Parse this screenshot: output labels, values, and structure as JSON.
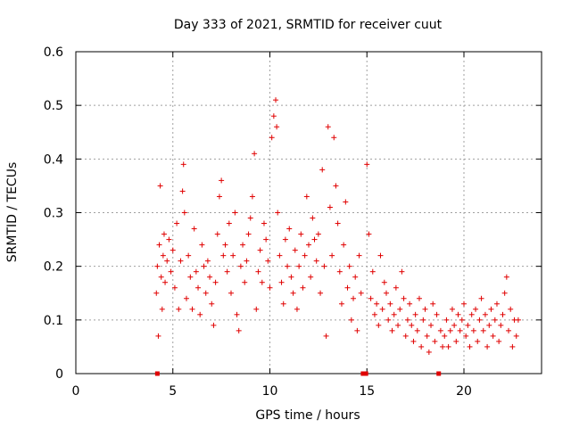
{
  "chart_data": {
    "type": "scatter",
    "title": "Day 333 of 2021, SRMTID for receiver cuut",
    "xlabel": "GPS time / hours",
    "ylabel": "SRMTID / TECUs",
    "xlim": [
      0,
      24
    ],
    "ylim": [
      0,
      0.6
    ],
    "xticks": [
      0,
      5,
      10,
      15,
      20
    ],
    "xtick_labels": [
      "0",
      "5",
      "10",
      "15",
      "20"
    ],
    "yticks": [
      0,
      0.1,
      0.2,
      0.3,
      0.4,
      0.5,
      0.6
    ],
    "ytick_labels": [
      "0",
      "0.1",
      "0.2",
      "0.3",
      "0.4",
      "0.5",
      "0.6"
    ],
    "grid": true,
    "marker": "plus",
    "color": "#e00000",
    "zero_markers_x": [
      4.2,
      14.8,
      14.95,
      18.7
    ],
    "series": [
      {
        "name": "SRMTID",
        "points": [
          [
            4.15,
            0.15
          ],
          [
            4.2,
            0.2
          ],
          [
            4.25,
            0.07
          ],
          [
            4.3,
            0.24
          ],
          [
            4.35,
            0.35
          ],
          [
            4.4,
            0.18
          ],
          [
            4.45,
            0.12
          ],
          [
            4.5,
            0.22
          ],
          [
            4.55,
            0.26
          ],
          [
            4.6,
            0.17
          ],
          [
            4.7,
            0.21
          ],
          [
            4.8,
            0.25
          ],
          [
            4.9,
            0.19
          ],
          [
            5.0,
            0.23
          ],
          [
            5.1,
            0.16
          ],
          [
            5.2,
            0.28
          ],
          [
            5.3,
            0.12
          ],
          [
            5.4,
            0.21
          ],
          [
            5.5,
            0.34
          ],
          [
            5.55,
            0.39
          ],
          [
            5.6,
            0.3
          ],
          [
            5.7,
            0.14
          ],
          [
            5.8,
            0.22
          ],
          [
            5.9,
            0.18
          ],
          [
            6.0,
            0.12
          ],
          [
            6.1,
            0.27
          ],
          [
            6.2,
            0.19
          ],
          [
            6.3,
            0.16
          ],
          [
            6.4,
            0.11
          ],
          [
            6.5,
            0.24
          ],
          [
            6.6,
            0.2
          ],
          [
            6.7,
            0.15
          ],
          [
            6.8,
            0.21
          ],
          [
            6.9,
            0.18
          ],
          [
            7.0,
            0.13
          ],
          [
            7.1,
            0.09
          ],
          [
            7.2,
            0.17
          ],
          [
            7.3,
            0.26
          ],
          [
            7.4,
            0.33
          ],
          [
            7.5,
            0.36
          ],
          [
            7.6,
            0.22
          ],
          [
            7.7,
            0.24
          ],
          [
            7.8,
            0.19
          ],
          [
            7.9,
            0.28
          ],
          [
            8.0,
            0.15
          ],
          [
            8.1,
            0.22
          ],
          [
            8.2,
            0.3
          ],
          [
            8.3,
            0.11
          ],
          [
            8.4,
            0.08
          ],
          [
            8.5,
            0.2
          ],
          [
            8.6,
            0.24
          ],
          [
            8.7,
            0.17
          ],
          [
            8.8,
            0.21
          ],
          [
            8.9,
            0.26
          ],
          [
            9.0,
            0.29
          ],
          [
            9.1,
            0.33
          ],
          [
            9.2,
            0.41
          ],
          [
            9.3,
            0.12
          ],
          [
            9.4,
            0.19
          ],
          [
            9.5,
            0.23
          ],
          [
            9.6,
            0.17
          ],
          [
            9.7,
            0.28
          ],
          [
            9.8,
            0.25
          ],
          [
            9.9,
            0.21
          ],
          [
            10.0,
            0.16
          ],
          [
            10.1,
            0.44
          ],
          [
            10.2,
            0.48
          ],
          [
            10.3,
            0.51
          ],
          [
            10.35,
            0.46
          ],
          [
            10.4,
            0.3
          ],
          [
            10.5,
            0.22
          ],
          [
            10.6,
            0.17
          ],
          [
            10.7,
            0.13
          ],
          [
            10.8,
            0.25
          ],
          [
            10.9,
            0.2
          ],
          [
            11.0,
            0.27
          ],
          [
            11.1,
            0.18
          ],
          [
            11.2,
            0.15
          ],
          [
            11.3,
            0.23
          ],
          [
            11.4,
            0.12
          ],
          [
            11.5,
            0.2
          ],
          [
            11.6,
            0.26
          ],
          [
            11.7,
            0.16
          ],
          [
            11.8,
            0.22
          ],
          [
            11.9,
            0.33
          ],
          [
            12.0,
            0.24
          ],
          [
            12.1,
            0.18
          ],
          [
            12.2,
            0.29
          ],
          [
            12.3,
            0.25
          ],
          [
            12.4,
            0.21
          ],
          [
            12.5,
            0.26
          ],
          [
            12.6,
            0.15
          ],
          [
            12.7,
            0.38
          ],
          [
            12.8,
            0.2
          ],
          [
            12.9,
            0.07
          ],
          [
            13.0,
            0.46
          ],
          [
            13.1,
            0.31
          ],
          [
            13.2,
            0.22
          ],
          [
            13.3,
            0.44
          ],
          [
            13.4,
            0.35
          ],
          [
            13.5,
            0.28
          ],
          [
            13.6,
            0.19
          ],
          [
            13.7,
            0.13
          ],
          [
            13.8,
            0.24
          ],
          [
            13.9,
            0.32
          ],
          [
            14.0,
            0.16
          ],
          [
            14.1,
            0.2
          ],
          [
            14.2,
            0.1
          ],
          [
            14.3,
            0.14
          ],
          [
            14.4,
            0.18
          ],
          [
            14.5,
            0.08
          ],
          [
            14.6,
            0.22
          ],
          [
            14.7,
            0.15
          ],
          [
            15.0,
            0.39
          ],
          [
            15.1,
            0.26
          ],
          [
            15.2,
            0.14
          ],
          [
            15.3,
            0.19
          ],
          [
            15.4,
            0.11
          ],
          [
            15.5,
            0.13
          ],
          [
            15.6,
            0.09
          ],
          [
            15.7,
            0.22
          ],
          [
            15.8,
            0.12
          ],
          [
            15.9,
            0.17
          ],
          [
            16.0,
            0.15
          ],
          [
            16.1,
            0.1
          ],
          [
            16.2,
            0.13
          ],
          [
            16.3,
            0.08
          ],
          [
            16.4,
            0.11
          ],
          [
            16.5,
            0.16
          ],
          [
            16.6,
            0.09
          ],
          [
            16.7,
            0.12
          ],
          [
            16.8,
            0.19
          ],
          [
            16.9,
            0.14
          ],
          [
            17.0,
            0.07
          ],
          [
            17.1,
            0.1
          ],
          [
            17.2,
            0.13
          ],
          [
            17.3,
            0.09
          ],
          [
            17.4,
            0.06
          ],
          [
            17.5,
            0.11
          ],
          [
            17.6,
            0.08
          ],
          [
            17.7,
            0.14
          ],
          [
            17.8,
            0.05
          ],
          [
            17.9,
            0.1
          ],
          [
            18.0,
            0.12
          ],
          [
            18.1,
            0.07
          ],
          [
            18.2,
            0.04
          ],
          [
            18.3,
            0.09
          ],
          [
            18.4,
            0.13
          ],
          [
            18.5,
            0.06
          ],
          [
            18.6,
            0.11
          ],
          [
            18.8,
            0.08
          ],
          [
            18.9,
            0.05
          ],
          [
            19.0,
            0.07
          ],
          [
            19.1,
            0.1
          ],
          [
            19.2,
            0.05
          ],
          [
            19.3,
            0.08
          ],
          [
            19.4,
            0.12
          ],
          [
            19.5,
            0.09
          ],
          [
            19.6,
            0.06
          ],
          [
            19.7,
            0.11
          ],
          [
            19.8,
            0.08
          ],
          [
            19.9,
            0.1
          ],
          [
            20.0,
            0.13
          ],
          [
            20.1,
            0.07
          ],
          [
            20.2,
            0.09
          ],
          [
            20.3,
            0.05
          ],
          [
            20.4,
            0.11
          ],
          [
            20.5,
            0.08
          ],
          [
            20.6,
            0.12
          ],
          [
            20.7,
            0.06
          ],
          [
            20.8,
            0.1
          ],
          [
            20.9,
            0.14
          ],
          [
            21.0,
            0.08
          ],
          [
            21.1,
            0.11
          ],
          [
            21.2,
            0.05
          ],
          [
            21.3,
            0.09
          ],
          [
            21.4,
            0.12
          ],
          [
            21.5,
            0.07
          ],
          [
            21.6,
            0.1
          ],
          [
            21.7,
            0.13
          ],
          [
            21.8,
            0.06
          ],
          [
            21.9,
            0.09
          ],
          [
            22.0,
            0.11
          ],
          [
            22.1,
            0.15
          ],
          [
            22.2,
            0.18
          ],
          [
            22.3,
            0.08
          ],
          [
            22.4,
            0.12
          ],
          [
            22.5,
            0.05
          ],
          [
            22.6,
            0.1
          ],
          [
            22.7,
            0.07
          ],
          [
            22.8,
            0.1
          ]
        ]
      }
    ]
  }
}
